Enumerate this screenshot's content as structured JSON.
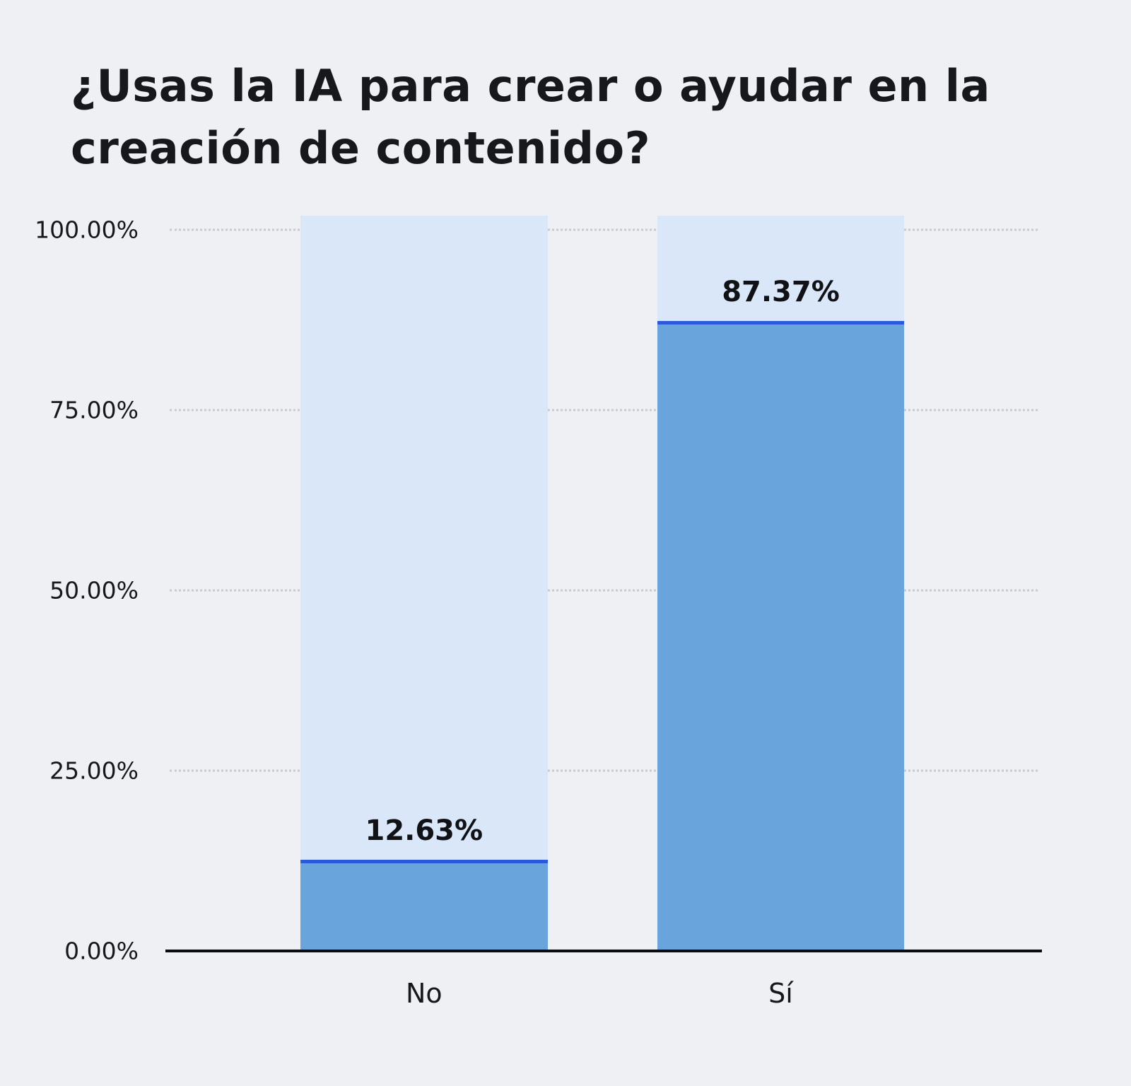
{
  "chart_data": {
    "type": "bar",
    "title": "¿Usas la IA para crear o ayudar en la creación de contenido?",
    "categories": [
      "No",
      "Sí"
    ],
    "values": [
      12.63,
      87.37
    ],
    "value_labels": [
      "12.63%",
      "87.37%"
    ],
    "y_ticks": [
      {
        "label": "0.00%",
        "value": 0
      },
      {
        "label": "25.00%",
        "value": 25
      },
      {
        "label": "50.00%",
        "value": 50
      },
      {
        "label": "75.00%",
        "value": 75
      },
      {
        "label": "100.00%",
        "value": 100
      }
    ],
    "ylim": [
      0,
      100
    ],
    "grid": "dotted horizontal lines at each tick except zero",
    "legend_position": "none",
    "xlabel": "",
    "ylabel": "",
    "colors": {
      "background": "#eef0f4",
      "bar_track": "#d9e7f8",
      "bar_fill": "#69a4dd",
      "bar_top_line": "#2a5ada",
      "text": "#17181c",
      "gridline": "#c7cad1",
      "axis_line": "#0b0c0e"
    },
    "bar_centers_pct": [
      29.3,
      70.4
    ]
  }
}
